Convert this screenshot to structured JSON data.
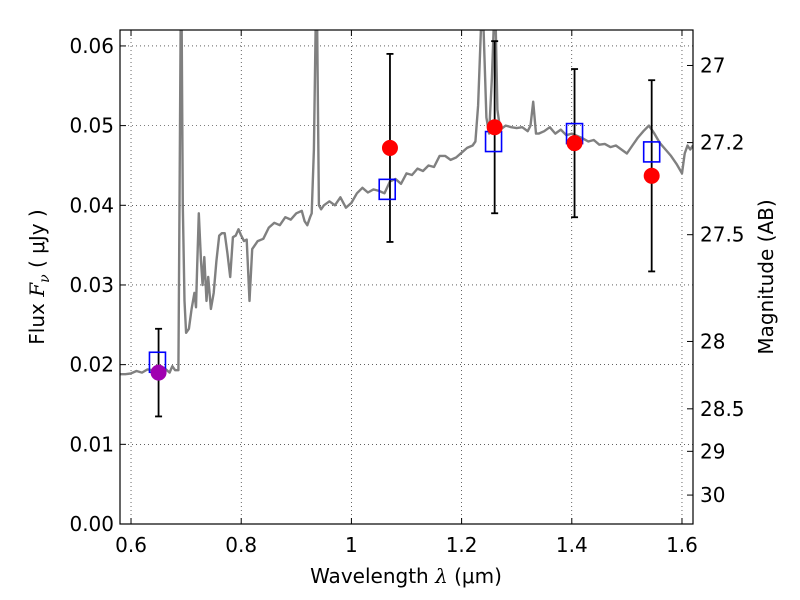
{
  "chart_data": {
    "type": "scatter",
    "xlabel": {
      "pre": "Wavelength  ",
      "symbol": "λ",
      "post": " (μm)"
    },
    "ylabel": {
      "pre": "Flux  ",
      "symbol": "F",
      "sub": "ν",
      "post": "  ( μJy )"
    },
    "ylabel_right": "Magnitude (AB)",
    "xlim": [
      0.58,
      1.62
    ],
    "ylim": [
      0.0,
      0.062
    ],
    "grid": true,
    "x_ticks": [
      {
        "value": 0.6,
        "label": "0.6"
      },
      {
        "value": 0.8,
        "label": "0.8"
      },
      {
        "value": 1.0,
        "label": "1"
      },
      {
        "value": 1.2,
        "label": "1.2"
      },
      {
        "value": 1.4,
        "label": "1.4"
      },
      {
        "value": 1.6,
        "label": "1.6"
      }
    ],
    "y_ticks": [
      {
        "value": 0.0,
        "label": "0.00"
      },
      {
        "value": 0.01,
        "label": "0.01"
      },
      {
        "value": 0.02,
        "label": "0.02"
      },
      {
        "value": 0.03,
        "label": "0.03"
      },
      {
        "value": 0.04,
        "label": "0.04"
      },
      {
        "value": 0.05,
        "label": "0.05"
      },
      {
        "value": 0.06,
        "label": "0.06"
      }
    ],
    "mag_ticks": [
      {
        "value": 27,
        "label": "27"
      },
      {
        "value": 27.2,
        "label": "27.2"
      },
      {
        "value": 27.5,
        "label": "27.5"
      },
      {
        "value": 28,
        "label": "28"
      },
      {
        "value": 28.5,
        "label": "28.5"
      },
      {
        "value": 29,
        "label": "29"
      },
      {
        "value": 30,
        "label": "30"
      }
    ],
    "model_spectrum": {
      "color": "#808080",
      "points": [
        [
          0.58,
          0.0188
        ],
        [
          0.59,
          0.0188
        ],
        [
          0.6,
          0.0189
        ],
        [
          0.61,
          0.0192
        ],
        [
          0.62,
          0.019
        ],
        [
          0.63,
          0.0194
        ],
        [
          0.64,
          0.0193
        ],
        [
          0.65,
          0.0192
        ],
        [
          0.66,
          0.0196
        ],
        [
          0.67,
          0.019
        ],
        [
          0.675,
          0.0198
        ],
        [
          0.68,
          0.0193
        ],
        [
          0.686,
          0.0193
        ],
        [
          0.688,
          0.04
        ],
        [
          0.69,
          0.062
        ],
        [
          0.692,
          0.062
        ],
        [
          0.694,
          0.04
        ],
        [
          0.697,
          0.028
        ],
        [
          0.7,
          0.024
        ],
        [
          0.705,
          0.0245
        ],
        [
          0.71,
          0.027
        ],
        [
          0.715,
          0.029
        ],
        [
          0.718,
          0.0272
        ],
        [
          0.72,
          0.032
        ],
        [
          0.723,
          0.039
        ],
        [
          0.727,
          0.033
        ],
        [
          0.73,
          0.03
        ],
        [
          0.733,
          0.0335
        ],
        [
          0.737,
          0.028
        ],
        [
          0.74,
          0.031
        ],
        [
          0.745,
          0.027
        ],
        [
          0.75,
          0.029
        ],
        [
          0.755,
          0.033
        ],
        [
          0.76,
          0.0362
        ],
        [
          0.765,
          0.0365
        ],
        [
          0.77,
          0.0365
        ],
        [
          0.775,
          0.034
        ],
        [
          0.78,
          0.031
        ],
        [
          0.785,
          0.036
        ],
        [
          0.79,
          0.0362
        ],
        [
          0.795,
          0.037
        ],
        [
          0.8,
          0.0362
        ],
        [
          0.805,
          0.0355
        ],
        [
          0.81,
          0.0357
        ],
        [
          0.815,
          0.028
        ],
        [
          0.82,
          0.0345
        ],
        [
          0.83,
          0.0355
        ],
        [
          0.84,
          0.0358
        ],
        [
          0.85,
          0.0372
        ],
        [
          0.86,
          0.0378
        ],
        [
          0.87,
          0.0375
        ],
        [
          0.88,
          0.0385
        ],
        [
          0.89,
          0.0382
        ],
        [
          0.9,
          0.039
        ],
        [
          0.91,
          0.0393
        ],
        [
          0.915,
          0.038
        ],
        [
          0.92,
          0.0375
        ],
        [
          0.925,
          0.0385
        ],
        [
          0.928,
          0.039
        ],
        [
          0.932,
          0.047
        ],
        [
          0.935,
          0.062
        ],
        [
          0.938,
          0.062
        ],
        [
          0.941,
          0.04
        ],
        [
          0.945,
          0.0395
        ],
        [
          0.95,
          0.04
        ],
        [
          0.96,
          0.0405
        ],
        [
          0.97,
          0.04
        ],
        [
          0.98,
          0.041
        ],
        [
          0.99,
          0.0397
        ],
        [
          1.0,
          0.0403
        ],
        [
          1.01,
          0.0415
        ],
        [
          1.02,
          0.0422
        ],
        [
          1.03,
          0.0416
        ],
        [
          1.04,
          0.042
        ],
        [
          1.05,
          0.0418
        ],
        [
          1.06,
          0.0415
        ],
        [
          1.07,
          0.043
        ],
        [
          1.08,
          0.0433
        ],
        [
          1.09,
          0.0427
        ],
        [
          1.1,
          0.044
        ],
        [
          1.11,
          0.0438
        ],
        [
          1.12,
          0.0446
        ],
        [
          1.13,
          0.0443
        ],
        [
          1.14,
          0.045
        ],
        [
          1.15,
          0.0448
        ],
        [
          1.16,
          0.0462
        ],
        [
          1.17,
          0.0462
        ],
        [
          1.18,
          0.0457
        ],
        [
          1.19,
          0.046
        ],
        [
          1.2,
          0.0466
        ],
        [
          1.21,
          0.0472
        ],
        [
          1.22,
          0.0475
        ],
        [
          1.225,
          0.048
        ],
        [
          1.23,
          0.0525
        ],
        [
          1.235,
          0.062
        ],
        [
          1.24,
          0.062
        ],
        [
          1.245,
          0.051
        ],
        [
          1.25,
          0.049
        ],
        [
          1.255,
          0.056
        ],
        [
          1.258,
          0.062
        ],
        [
          1.262,
          0.062
        ],
        [
          1.265,
          0.052
        ],
        [
          1.27,
          0.0495
        ],
        [
          1.28,
          0.05
        ],
        [
          1.29,
          0.0498
        ],
        [
          1.3,
          0.0497
        ],
        [
          1.31,
          0.0498
        ],
        [
          1.32,
          0.0493
        ],
        [
          1.325,
          0.05
        ],
        [
          1.33,
          0.053
        ],
        [
          1.335,
          0.049
        ],
        [
          1.34,
          0.049
        ],
        [
          1.35,
          0.0493
        ],
        [
          1.36,
          0.0498
        ],
        [
          1.37,
          0.049
        ],
        [
          1.38,
          0.0495
        ],
        [
          1.39,
          0.0488
        ],
        [
          1.4,
          0.049
        ],
        [
          1.41,
          0.0487
        ],
        [
          1.42,
          0.0484
        ],
        [
          1.43,
          0.048
        ],
        [
          1.44,
          0.0482
        ],
        [
          1.45,
          0.0476
        ],
        [
          1.46,
          0.0477
        ],
        [
          1.47,
          0.0473
        ],
        [
          1.48,
          0.0475
        ],
        [
          1.49,
          0.047
        ],
        [
          1.5,
          0.0465
        ],
        [
          1.51,
          0.0475
        ],
        [
          1.52,
          0.0485
        ],
        [
          1.53,
          0.0493
        ],
        [
          1.54,
          0.05
        ],
        [
          1.55,
          0.049
        ],
        [
          1.56,
          0.0478
        ],
        [
          1.57,
          0.047
        ],
        [
          1.58,
          0.0462
        ],
        [
          1.59,
          0.0452
        ],
        [
          1.6,
          0.044
        ],
        [
          1.605,
          0.0465
        ],
        [
          1.61,
          0.0475
        ],
        [
          1.615,
          0.047
        ],
        [
          1.62,
          0.0475
        ]
      ]
    },
    "model_photometry": {
      "color": "#0000ff",
      "points": [
        {
          "x": 0.648,
          "y": 0.0203
        },
        {
          "x": 1.065,
          "y": 0.042
        },
        {
          "x": 1.258,
          "y": 0.048
        },
        {
          "x": 1.405,
          "y": 0.049
        },
        {
          "x": 1.545,
          "y": 0.0467
        }
      ]
    },
    "observed_photometry": {
      "points": [
        {
          "x": 0.65,
          "y": 0.019,
          "yerr": 0.0055,
          "color": "#a000b0"
        },
        {
          "x": 1.07,
          "y": 0.0472,
          "yerr": 0.0118,
          "color": "#ff0000"
        },
        {
          "x": 1.26,
          "y": 0.0498,
          "yerr": 0.0108,
          "color": "#ff0000"
        },
        {
          "x": 1.405,
          "y": 0.0478,
          "yerr": 0.0093,
          "color": "#ff0000"
        },
        {
          "x": 1.545,
          "y": 0.0437,
          "yerr": 0.012,
          "color": "#ff0000"
        }
      ]
    }
  }
}
